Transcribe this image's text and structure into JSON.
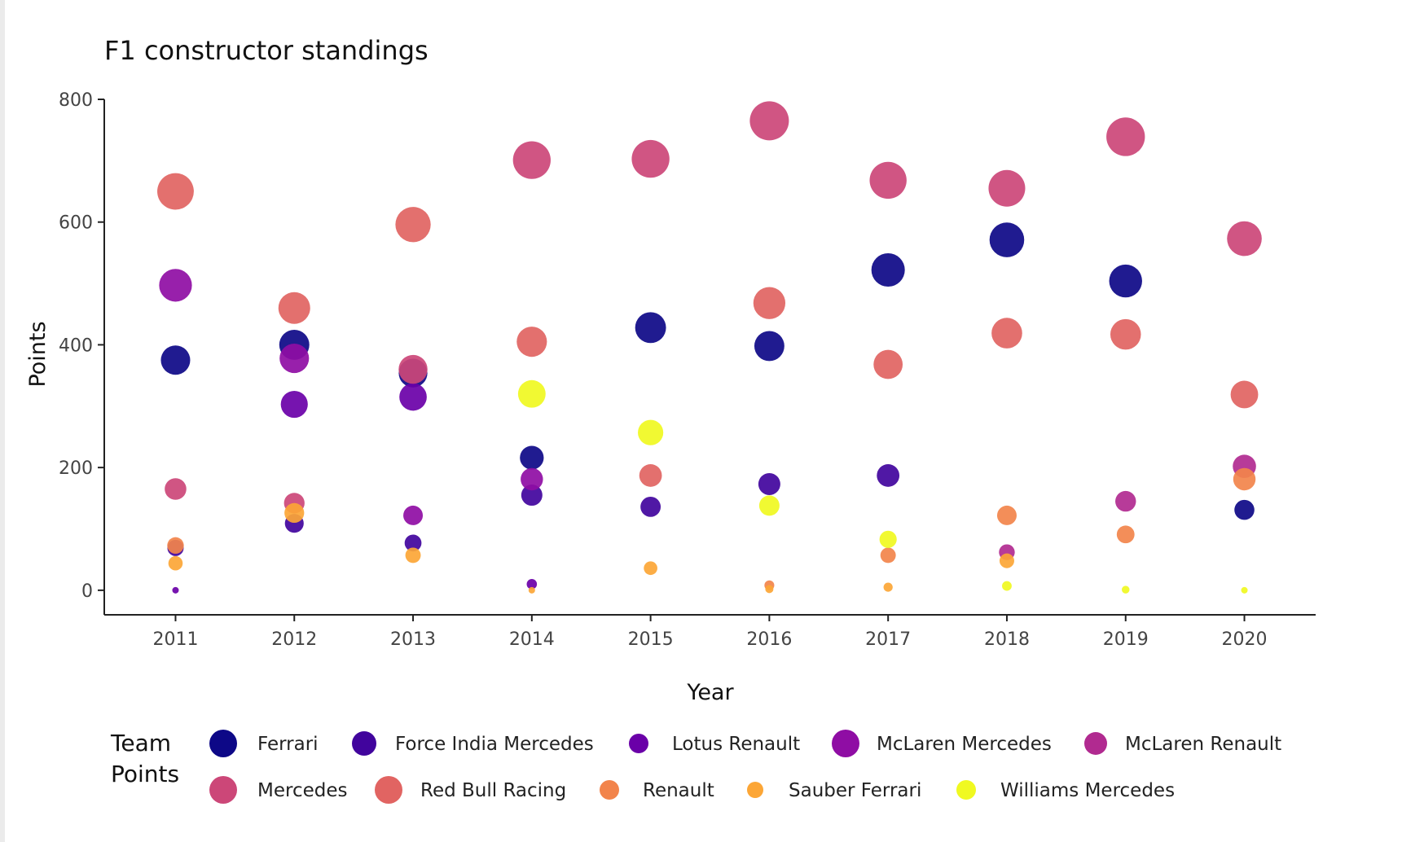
{
  "chart_data": {
    "type": "scatter",
    "title": "F1 constructor standings",
    "xlabel": "Year",
    "ylabel": "Points",
    "xlim": [
      2010.4,
      2020.6
    ],
    "ylim": [
      -40,
      800
    ],
    "x_ticks": [
      2011,
      2012,
      2013,
      2014,
      2015,
      2016,
      2017,
      2018,
      2019,
      2020
    ],
    "y_ticks": [
      0,
      200,
      400,
      600,
      800
    ],
    "grid": false,
    "legend_title": "Team Points",
    "legend_title_lines": [
      "Team",
      "Points"
    ],
    "legend_position": "bottom",
    "size_encodes": "Points",
    "series": [
      {
        "name": "Ferrari",
        "color": "#0d0887",
        "points": [
          [
            2011,
            375
          ],
          [
            2012,
            400
          ],
          [
            2013,
            354
          ],
          [
            2014,
            216
          ],
          [
            2015,
            428
          ],
          [
            2016,
            398
          ],
          [
            2017,
            522
          ],
          [
            2018,
            571
          ],
          [
            2019,
            504
          ],
          [
            2020,
            131
          ]
        ]
      },
      {
        "name": "Force India Mercedes",
        "color": "#41049d",
        "points": [
          [
            2011,
            69
          ],
          [
            2012,
            109
          ],
          [
            2013,
            77
          ],
          [
            2014,
            155
          ],
          [
            2015,
            136
          ],
          [
            2016,
            173
          ],
          [
            2017,
            187
          ]
        ]
      },
      {
        "name": "Lotus Renault",
        "color": "#6a00a8",
        "points": [
          [
            2011,
            0
          ],
          [
            2012,
            303
          ],
          [
            2013,
            315
          ],
          [
            2014,
            10
          ]
        ]
      },
      {
        "name": "McLaren Mercedes",
        "color": "#8f0da4",
        "points": [
          [
            2011,
            497
          ],
          [
            2012,
            378
          ],
          [
            2013,
            122
          ],
          [
            2014,
            181
          ]
        ]
      },
      {
        "name": "McLaren Renault",
        "color": "#b12a90",
        "points": [
          [
            2018,
            62
          ],
          [
            2019,
            145
          ],
          [
            2020,
            202
          ]
        ]
      },
      {
        "name": "Mercedes",
        "color": "#cc4778",
        "points": [
          [
            2011,
            165
          ],
          [
            2012,
            142
          ],
          [
            2013,
            360
          ],
          [
            2014,
            701
          ],
          [
            2015,
            703
          ],
          [
            2016,
            765
          ],
          [
            2017,
            668
          ],
          [
            2018,
            655
          ],
          [
            2019,
            739
          ],
          [
            2020,
            573
          ]
        ]
      },
      {
        "name": "Red Bull Racing",
        "color": "#e16462",
        "points": [
          [
            2011,
            650
          ],
          [
            2012,
            460
          ],
          [
            2013,
            596
          ],
          [
            2014,
            405
          ],
          [
            2015,
            187
          ],
          [
            2016,
            468
          ],
          [
            2017,
            368
          ],
          [
            2018,
            419
          ],
          [
            2019,
            417
          ],
          [
            2020,
            319
          ]
        ]
      },
      {
        "name": "Renault",
        "color": "#f2844b",
        "points": [
          [
            2011,
            73
          ],
          [
            2016,
            8
          ],
          [
            2017,
            57
          ],
          [
            2018,
            122
          ],
          [
            2019,
            91
          ],
          [
            2020,
            181
          ]
        ]
      },
      {
        "name": "Sauber Ferrari",
        "color": "#fca636",
        "points": [
          [
            2011,
            44
          ],
          [
            2012,
            126
          ],
          [
            2013,
            57
          ],
          [
            2014,
            0
          ],
          [
            2015,
            36
          ],
          [
            2016,
            2
          ],
          [
            2017,
            5
          ],
          [
            2018,
            48
          ]
        ]
      },
      {
        "name": "Williams Mercedes",
        "color": "#f0f921",
        "points": [
          [
            2014,
            320
          ],
          [
            2015,
            257
          ],
          [
            2016,
            138
          ],
          [
            2017,
            83
          ],
          [
            2018,
            7
          ],
          [
            2019,
            1
          ],
          [
            2020,
            0
          ]
        ]
      }
    ]
  }
}
